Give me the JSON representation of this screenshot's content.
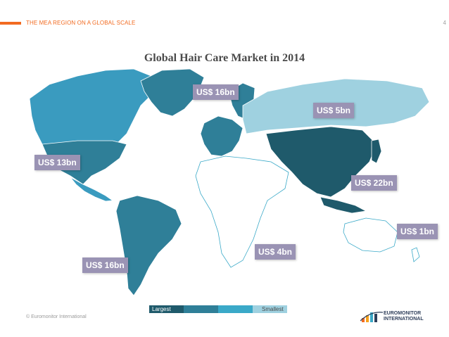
{
  "header": {
    "section_label": "THE MEA REGION ON A GLOBAL SCALE",
    "page_number": "4"
  },
  "map": {
    "title": "Global Hair Care Market in 2014",
    "regions": [
      {
        "region": "North America",
        "value": "US$ 13bn",
        "shade": "#3a9bbf"
      },
      {
        "region": "Latin America",
        "value": "US$ 16bn",
        "shade": "#2f7f98"
      },
      {
        "region": "Western Europe",
        "value": "US$ 16bn",
        "shade": "#2f7f98"
      },
      {
        "region": "Eastern Europe",
        "value": "US$ 5bn",
        "shade": "#9fd1e0"
      },
      {
        "region": "Middle East and Africa",
        "value": "US$ 4bn",
        "shade": "#ffffff"
      },
      {
        "region": "Asia Pacific",
        "value": "US$ 22bn",
        "shade": "#1f5a6b"
      },
      {
        "region": "Australasia",
        "value": "US$ 1bn",
        "shade": "#ffffff"
      }
    ],
    "labels": {
      "north_america": "US$ 13bn",
      "latin_america": "US$ 16bn",
      "western_europe": "US$ 16bn",
      "eastern_europe": "US$ 5bn",
      "mea": "US$ 4bn",
      "asia_pacific": "US$ 22bn",
      "australasia": "US$ 1bn"
    }
  },
  "legend": {
    "largest": "Largest",
    "smallest": "Smallest",
    "colors": [
      "#1f5a6b",
      "#2f7f98",
      "#3aa9c8",
      "#9fd1e0"
    ]
  },
  "footer": {
    "copyright": "© Euromonitor International",
    "logo_line1": "EUROMONITOR",
    "logo_line2": "INTERNATIONAL"
  },
  "colors": {
    "accent": "#f26b21",
    "label_bg": "#9a93b4",
    "darkest": "#1f5a6b",
    "dark": "#2f7f98",
    "medium": "#3a9bbf",
    "light": "#9fd1e0"
  }
}
